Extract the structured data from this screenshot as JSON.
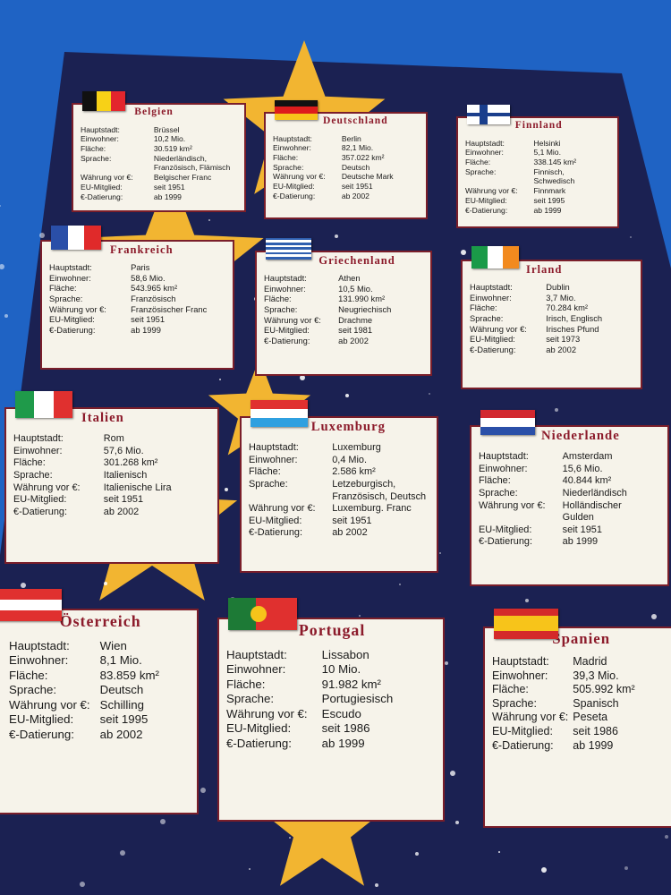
{
  "colors": {
    "background": "#1f63c4",
    "card": "#1b2152",
    "star": "#f2b531",
    "title": "#8c1b2b",
    "box": "#f6f3ea"
  },
  "labels": {
    "capital": "Hauptstadt:",
    "population": "Einwohner:",
    "area": "Fläche:",
    "language": "Sprache:",
    "currency": "Währung vor €:",
    "eu": "EU-Mitglied:",
    "euro": "€-Datierung:"
  },
  "countries": [
    {
      "name": "Belgien",
      "flag": {
        "dir": "v",
        "colors": [
          "#111111",
          "#f7d117",
          "#e3262d"
        ]
      },
      "capital": "Brüssel",
      "population": "10,2 Mio.",
      "area": "30.519 km²",
      "language": "Niederländisch,\nFranzösisch, Flämisch",
      "currency": "Belgischer Franc",
      "eu": "seit 1951",
      "euro": "ab 1999"
    },
    {
      "name": "Deutschland",
      "flag": {
        "dir": "h",
        "colors": [
          "#111111",
          "#dd1c1c",
          "#f7c41a"
        ]
      },
      "capital": "Berlin",
      "population": "82,1 Mio.",
      "area": "357.022 km²",
      "language": "Deutsch",
      "currency": "Deutsche Mark",
      "eu": "seit 1951",
      "euro": "ab 2002"
    },
    {
      "name": "Finnland",
      "flag": {
        "dir": "nordic",
        "colors": [
          "#ffffff",
          "#1a3e8c"
        ]
      },
      "capital": "Helsinki",
      "population": "5,1 Mio.",
      "area": "338.145 km²",
      "language": "Finnisch,\nSchwedisch",
      "currency": "Finnmark",
      "eu": "seit 1995",
      "euro": "ab 1999"
    },
    {
      "name": "Frankreich",
      "flag": {
        "dir": "v",
        "colors": [
          "#2a4fa8",
          "#ffffff",
          "#e02a2a"
        ]
      },
      "capital": "Paris",
      "population": "58,6 Mio.",
      "area": "543.965 km²",
      "language": "Französisch",
      "currency": "Französischer Franc",
      "eu": "seit 1951",
      "euro": "ab 1999"
    },
    {
      "name": "Griechenland",
      "flag": {
        "dir": "stripes",
        "colors": [
          "#2f5fb0",
          "#ffffff"
        ]
      },
      "capital": "Athen",
      "population": "10,5 Mio.",
      "area": "131.990 km²",
      "language": "Neugriechisch",
      "currency": "Drachme",
      "eu": "seit 1981",
      "euro": "ab 2002"
    },
    {
      "name": "Irland",
      "flag": {
        "dir": "v",
        "colors": [
          "#1a9a48",
          "#ffffff",
          "#f28a1e"
        ]
      },
      "capital": "Dublin",
      "population": "3,7 Mio.",
      "area": "70.284 km²",
      "language": "Irisch, Englisch",
      "currency": "Irisches Pfund",
      "eu": "seit 1973",
      "euro": "ab 2002"
    },
    {
      "name": "Italien",
      "flag": {
        "dir": "v",
        "colors": [
          "#1f9a4a",
          "#ffffff",
          "#e0302f"
        ]
      },
      "capital": "Rom",
      "population": "57,6 Mio.",
      "area": "301.268 km²",
      "language": "Italienisch",
      "currency": "Italienische Lira",
      "eu": "seit 1951",
      "euro": "ab 2002"
    },
    {
      "name": "Luxemburg",
      "flag": {
        "dir": "h",
        "colors": [
          "#e0302f",
          "#ffffff",
          "#2fa0e0"
        ]
      },
      "capital": "Luxemburg",
      "population": "0,4 Mio.",
      "area": "2.586 km²",
      "language": "Letzeburgisch,\nFranzösisch, Deutsch",
      "currency": "Luxemburg. Franc",
      "eu": "seit 1951",
      "euro": "ab 2002"
    },
    {
      "name": "Niederlande",
      "flag": {
        "dir": "h",
        "colors": [
          "#d2282f",
          "#ffffff",
          "#2a4fa8"
        ]
      },
      "capital": "Amsterdam",
      "population": "15,6 Mio.",
      "area": "40.844 km²",
      "language": "Niederländisch",
      "currency": "Holländischer\nGulden",
      "eu": "seit 1951",
      "euro": "ab 1999"
    },
    {
      "name": "Österreich",
      "flag": {
        "dir": "h",
        "colors": [
          "#e0302f",
          "#ffffff",
          "#e0302f"
        ]
      },
      "capital": "Wien",
      "population": "8,1 Mio.",
      "area": "83.859 km²",
      "language": "Deutsch",
      "currency": "Schilling",
      "eu": "seit 1995",
      "euro": "ab 2002"
    },
    {
      "name": "Portugal",
      "flag": {
        "dir": "pt",
        "colors": [
          "#1d7a36",
          "#e0302f"
        ]
      },
      "capital": "Lissabon",
      "population": "10 Mio.",
      "area": "91.982 km²",
      "language": "Portugiesisch",
      "currency": "Escudo",
      "eu": "seit 1986",
      "euro": "ab 1999"
    },
    {
      "name": "Spanien",
      "flag": {
        "dir": "es",
        "colors": [
          "#d42a2a",
          "#f7c41a",
          "#d42a2a"
        ]
      },
      "capital": "Madrid",
      "population": "39,3 Mio.",
      "area": "505.992 km²",
      "language": "Spanisch",
      "currency": "Peseta",
      "eu": "seit 1986",
      "euro": "ab 1999"
    }
  ]
}
